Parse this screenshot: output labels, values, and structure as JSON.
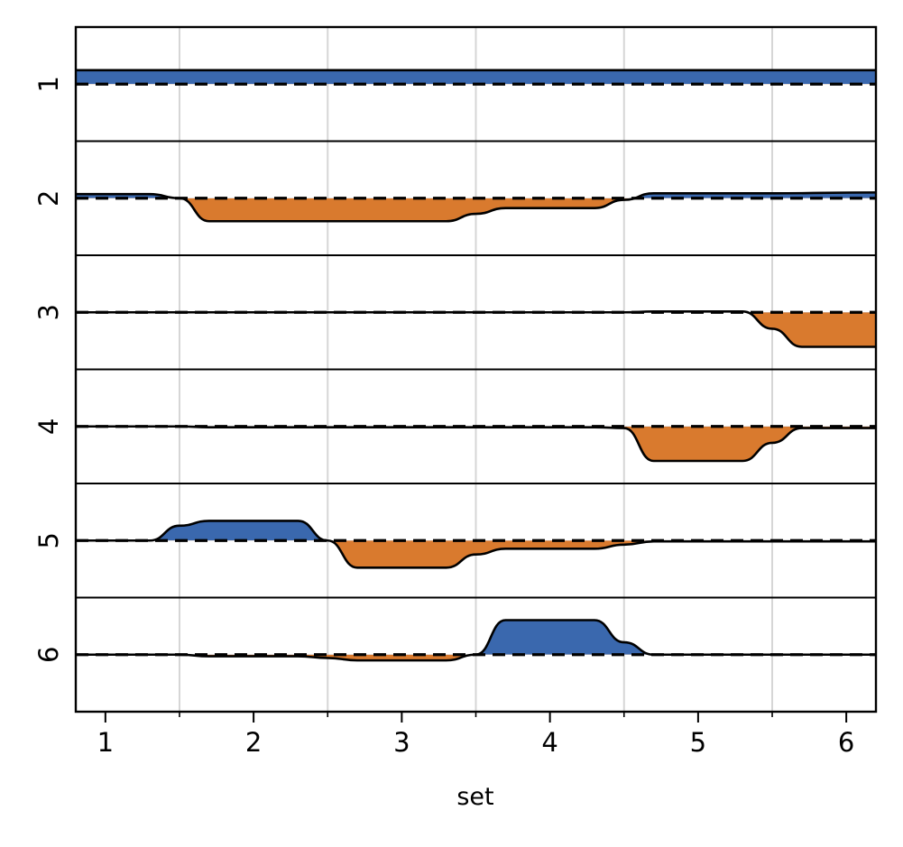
{
  "chart_data": {
    "type": "area",
    "title": "",
    "xlabel": "set",
    "ylabel": "",
    "xlim": [
      0.8,
      6.2
    ],
    "x_ticks": [
      "1",
      "2",
      "3",
      "4",
      "5",
      "6"
    ],
    "x_minor_ticks": [
      1.5,
      2.5,
      3.5,
      4.5,
      5.5
    ],
    "vertical_gridlines_at": [
      1.5,
      2.5,
      3.5,
      4.5,
      5.5
    ],
    "rows": [
      {
        "label": "1",
        "points": [
          [
            0.8,
            0.17
          ],
          [
            6.2,
            0.17
          ]
        ]
      },
      {
        "label": "2",
        "points": [
          [
            0.8,
            0.05
          ],
          [
            1.3,
            0.05
          ],
          [
            1.5,
            0.0
          ],
          [
            1.7,
            -0.28
          ],
          [
            2.5,
            -0.28
          ],
          [
            3.3,
            -0.28
          ],
          [
            3.5,
            -0.19
          ],
          [
            3.7,
            -0.12
          ],
          [
            4.3,
            -0.12
          ],
          [
            4.5,
            -0.02
          ],
          [
            4.7,
            0.06
          ],
          [
            5.5,
            0.06
          ],
          [
            6.2,
            0.07
          ]
        ]
      },
      {
        "label": "3",
        "points": [
          [
            0.8,
            0.0
          ],
          [
            4.3,
            0.0
          ],
          [
            4.5,
            0.0
          ],
          [
            4.7,
            0.01
          ],
          [
            5.3,
            0.01
          ],
          [
            5.5,
            -0.2
          ],
          [
            5.7,
            -0.42
          ],
          [
            6.2,
            -0.42
          ]
        ]
      },
      {
        "label": "4",
        "points": [
          [
            0.8,
            0.0
          ],
          [
            1.5,
            0.0
          ],
          [
            1.7,
            -0.01
          ],
          [
            4.3,
            -0.01
          ],
          [
            4.5,
            -0.02
          ],
          [
            4.7,
            -0.42
          ],
          [
            5.3,
            -0.42
          ],
          [
            5.5,
            -0.2
          ],
          [
            5.7,
            -0.02
          ],
          [
            6.2,
            -0.02
          ]
        ]
      },
      {
        "label": "5",
        "points": [
          [
            0.8,
            0.0
          ],
          [
            1.3,
            0.0
          ],
          [
            1.5,
            0.18
          ],
          [
            1.7,
            0.24
          ],
          [
            2.3,
            0.24
          ],
          [
            2.5,
            0.0
          ],
          [
            2.7,
            -0.33
          ],
          [
            3.3,
            -0.33
          ],
          [
            3.5,
            -0.17
          ],
          [
            3.7,
            -0.1
          ],
          [
            4.3,
            -0.1
          ],
          [
            4.5,
            -0.05
          ],
          [
            4.7,
            -0.01
          ],
          [
            5.3,
            -0.01
          ],
          [
            6.2,
            -0.01
          ]
        ]
      },
      {
        "label": "6",
        "points": [
          [
            0.8,
            0.0
          ],
          [
            1.5,
            0.0
          ],
          [
            1.7,
            -0.02
          ],
          [
            2.3,
            -0.02
          ],
          [
            2.5,
            -0.04
          ],
          [
            2.7,
            -0.07
          ],
          [
            3.3,
            -0.07
          ],
          [
            3.5,
            0.0
          ],
          [
            3.7,
            0.42
          ],
          [
            4.3,
            0.42
          ],
          [
            4.5,
            0.15
          ],
          [
            4.7,
            0.0
          ],
          [
            6.2,
            0.0
          ]
        ]
      }
    ],
    "colors": {
      "positive": "#3a68ae",
      "negative": "#d97a2e",
      "line": "#000000",
      "baseline": "#000000",
      "grid": "#d6d6d6"
    }
  }
}
